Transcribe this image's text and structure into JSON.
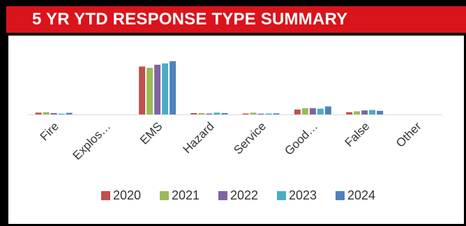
{
  "title": "5 YR YTD RESPONSE TYPE SUMMARY",
  "chart_data": {
    "type": "bar",
    "categories": [
      "Fire",
      "Explos…",
      "EMS",
      "Hazard",
      "Service",
      "Good…",
      "False",
      "Other"
    ],
    "series": [
      {
        "name": "2020",
        "color": "#c0504d",
        "values": [
          20,
          0,
          540,
          15,
          10,
          55,
          25,
          0
        ]
      },
      {
        "name": "2021",
        "color": "#9bbb59",
        "values": [
          25,
          0,
          525,
          15,
          20,
          70,
          35,
          0
        ]
      },
      {
        "name": "2022",
        "color": "#8064a2",
        "values": [
          15,
          0,
          560,
          10,
          8,
          70,
          45,
          0
        ]
      },
      {
        "name": "2023",
        "color": "#4bacc6",
        "values": [
          8,
          0,
          575,
          20,
          10,
          65,
          50,
          0
        ]
      },
      {
        "name": "2024",
        "color": "#4f81bd",
        "values": [
          18,
          0,
          600,
          15,
          12,
          90,
          40,
          0
        ]
      }
    ],
    "ylim": [
      0,
      700
    ],
    "grid": false,
    "legend_position": "bottom"
  }
}
